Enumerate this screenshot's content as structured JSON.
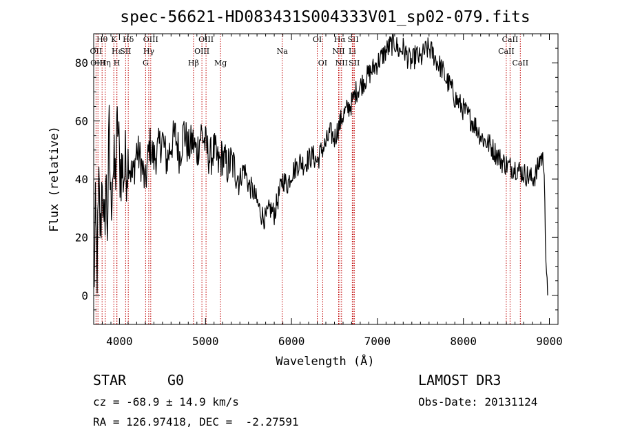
{
  "chart_data": {
    "type": "line",
    "title": "spec-56621-HD083431S004333V01_sp02-079.fits",
    "xlabel": "Wavelength (Å)",
    "ylabel": "Flux (relative)",
    "xlim": [
      3700,
      9100
    ],
    "ylim": [
      -10,
      90
    ],
    "xticks": [
      4000,
      5000,
      6000,
      7000,
      8000,
      9000
    ],
    "yticks": [
      0,
      20,
      40,
      60,
      80
    ],
    "grid": false,
    "line_color": "#000000",
    "marker_color": "#c00000",
    "series": [
      {
        "name": "flux",
        "x": [
          3700,
          3720,
          3740,
          3760,
          3780,
          3800,
          3820,
          3840,
          3860,
          3880,
          3900,
          3920,
          3950,
          3980,
          4000,
          4050,
          4100,
          4150,
          4200,
          4250,
          4300,
          4350,
          4400,
          4450,
          4500,
          4550,
          4600,
          4650,
          4700,
          4750,
          4800,
          4850,
          4900,
          4950,
          5000,
          5050,
          5100,
          5150,
          5200,
          5250,
          5300,
          5350,
          5400,
          5450,
          5500,
          5550,
          5600,
          5650,
          5700,
          5750,
          5800,
          5850,
          5900,
          5950,
          6000,
          6050,
          6100,
          6150,
          6200,
          6250,
          6300,
          6350,
          6400,
          6450,
          6500,
          6550,
          6600,
          6650,
          6700,
          6750,
          6800,
          6850,
          6900,
          6950,
          7000,
          7050,
          7100,
          7150,
          7200,
          7250,
          7300,
          7350,
          7400,
          7450,
          7500,
          7550,
          7600,
          7650,
          7700,
          7750,
          7800,
          7850,
          7900,
          7950,
          8000,
          8050,
          8100,
          8150,
          8200,
          8250,
          8300,
          8350,
          8400,
          8450,
          8500,
          8550,
          8600,
          8650,
          8700,
          8750,
          8800,
          8850,
          8900,
          8940,
          8960,
          8980
        ],
        "values": [
          0,
          25,
          10,
          35,
          20,
          45,
          15,
          40,
          25,
          55,
          30,
          45,
          40,
          60,
          45,
          42,
          48,
          40,
          50,
          46,
          38,
          52,
          47,
          50,
          54,
          46,
          52,
          55,
          48,
          57,
          50,
          53,
          49,
          56,
          52,
          47,
          50,
          45,
          48,
          44,
          46,
          43,
          40,
          44,
          38,
          36,
          32,
          28,
          26,
          30,
          28,
          34,
          40,
          38,
          42,
          44,
          46,
          45,
          47,
          48,
          46,
          50,
          52,
          56,
          54,
          58,
          62,
          64,
          66,
          70,
          72,
          74,
          76,
          78,
          80,
          82,
          84,
          86,
          87,
          84,
          85,
          82,
          80,
          83,
          81,
          84,
          85,
          83,
          80,
          78,
          74,
          72,
          68,
          66,
          64,
          62,
          60,
          58,
          55,
          53,
          52,
          50,
          48,
          46,
          45,
          44,
          44,
          43,
          42,
          41,
          40,
          42,
          48,
          45,
          8,
          0
        ]
      }
    ],
    "spectral_lines": [
      {
        "label": "Hθ",
        "wavelength": 3798,
        "row": 0
      },
      {
        "label": "OII",
        "wavelength": 3727,
        "row": 1
      },
      {
        "label": "OIII",
        "wavelength": 3750,
        "row": 2
      },
      {
        "label": "K",
        "wavelength": 3934,
        "row": 0
      },
      {
        "label": "Hε",
        "wavelength": 3970,
        "row": 1
      },
      {
        "label": "Hη",
        "wavelength": 3835,
        "row": 2
      },
      {
        "label": "H",
        "wavelength": 3969,
        "row": 2
      },
      {
        "label": "SII",
        "wavelength": 4072,
        "row": 1
      },
      {
        "label": "Hδ",
        "wavelength": 4102,
        "row": 0
      },
      {
        "label": "OIII",
        "wavelength": 4363,
        "row": 0
      },
      {
        "label": "Hγ",
        "wavelength": 4340,
        "row": 1
      },
      {
        "label": "G",
        "wavelength": 4304,
        "row": 2
      },
      {
        "label": "Hβ",
        "wavelength": 4861,
        "row": 2
      },
      {
        "label": "OIII",
        "wavelength": 5007,
        "row": 0
      },
      {
        "label": "OIII",
        "wavelength": 4959,
        "row": 1
      },
      {
        "label": "Mg",
        "wavelength": 5175,
        "row": 2
      },
      {
        "label": "Na",
        "wavelength": 5893,
        "row": 1
      },
      {
        "label": "OI",
        "wavelength": 6300,
        "row": 0
      },
      {
        "label": "OI",
        "wavelength": 6363,
        "row": 2
      },
      {
        "label": "Hα",
        "wavelength": 6563,
        "row": 0
      },
      {
        "label": "NII",
        "wavelength": 6548,
        "row": 1
      },
      {
        "label": "NII",
        "wavelength": 6583,
        "row": 2
      },
      {
        "label": "SII",
        "wavelength": 6717,
        "row": 0
      },
      {
        "label": "Li",
        "wavelength": 6708,
        "row": 1
      },
      {
        "label": "SII",
        "wavelength": 6731,
        "row": 2
      },
      {
        "label": "CaII",
        "wavelength": 8542,
        "row": 0
      },
      {
        "label": "CaII",
        "wavelength": 8498,
        "row": 1
      },
      {
        "label": "CaII",
        "wavelength": 8662,
        "row": 2
      }
    ]
  },
  "info": {
    "class_type": "STAR",
    "subclass": "G0",
    "survey": "LAMOST DR3",
    "cz": "cz = -68.9 ± 14.9 km/s",
    "obs_date": "Obs-Date: 20131124",
    "coords": "RA = 126.97418, DEC =  -2.27591"
  }
}
